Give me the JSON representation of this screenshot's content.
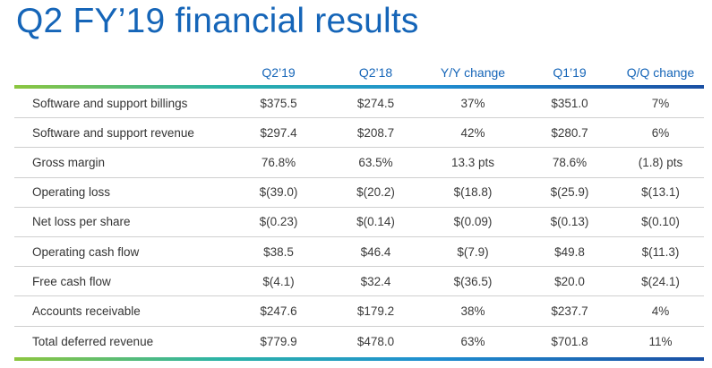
{
  "title": "Q2 FY’19 financial results",
  "columns": [
    "Q2’19",
    "Q2’18",
    "Y/Y change",
    "Q1’19",
    "Q/Q change"
  ],
  "rows": [
    {
      "label": "Software and support billings",
      "values": [
        "$375.5",
        "$274.5",
        "37%",
        "$351.0",
        "7%"
      ]
    },
    {
      "label": "Software and support revenue",
      "values": [
        "$297.4",
        "$208.7",
        "42%",
        "$280.7",
        "6%"
      ]
    },
    {
      "label": "Gross margin",
      "values": [
        "76.8%",
        "63.5%",
        "13.3 pts",
        "78.6%",
        "(1.8) pts"
      ]
    },
    {
      "label": "Operating loss",
      "values": [
        "$(39.0)",
        "$(20.2)",
        "$(18.8)",
        "$(25.9)",
        "$(13.1)"
      ]
    },
    {
      "label": "Net loss per share",
      "values": [
        "$(0.23)",
        "$(0.14)",
        "$(0.09)",
        "$(0.13)",
        "$(0.10)"
      ]
    },
    {
      "label": "Operating cash flow",
      "values": [
        "$38.5",
        "$46.4",
        "$(7.9)",
        "$49.8",
        "$(11.3)"
      ]
    },
    {
      "label": "Free cash flow",
      "values": [
        "$(4.1)",
        "$32.4",
        "$(36.5)",
        "$20.0",
        "$(24.1)"
      ]
    },
    {
      "label": "Accounts receivable",
      "values": [
        "$247.6",
        "$179.2",
        "38%",
        "$237.7",
        "4%"
      ]
    },
    {
      "label": "Total deferred revenue",
      "values": [
        "$779.9",
        "$478.0",
        "63%",
        "$701.8",
        "11%"
      ]
    }
  ],
  "colors": {
    "title": "#1565b8",
    "gradient": [
      "#8cc63f",
      "#2bb3a7",
      "#1f8fd1",
      "#1a4fa3"
    ]
  }
}
